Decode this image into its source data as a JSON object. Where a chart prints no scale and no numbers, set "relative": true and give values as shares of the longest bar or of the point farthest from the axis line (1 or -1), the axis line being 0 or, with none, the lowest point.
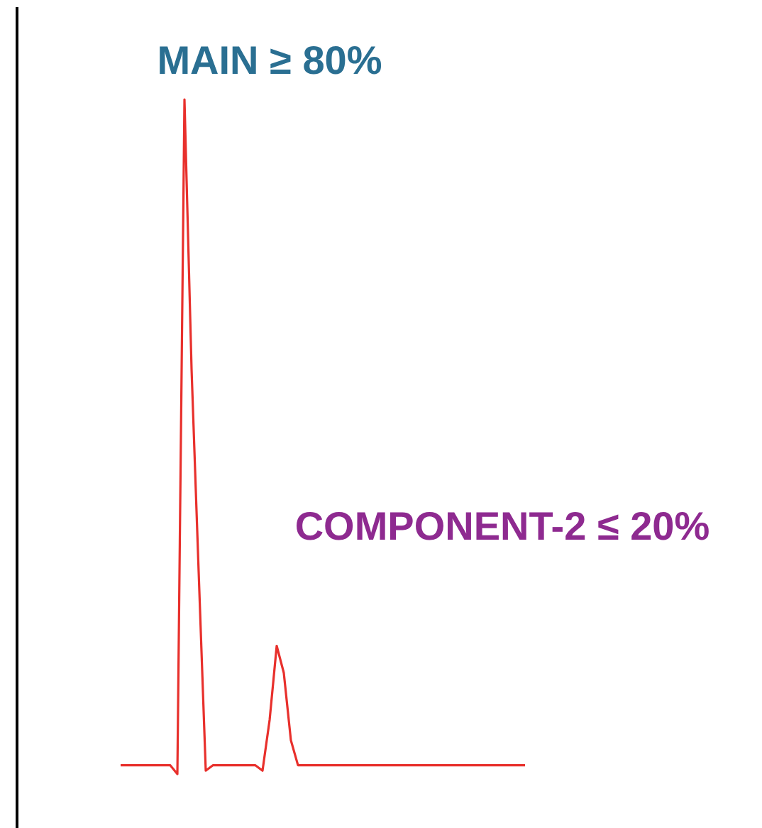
{
  "chart_data": {
    "type": "line",
    "relative": true,
    "marker": "none",
    "line_style": "solid",
    "categories": [
      null,
      null,
      null,
      null,
      null,
      null,
      null,
      null,
      null,
      null,
      null,
      null,
      null,
      null,
      null,
      null,
      null,
      null,
      null,
      null,
      null,
      null,
      null,
      null,
      null,
      null,
      null,
      null,
      null,
      null,
      null,
      null,
      null,
      null,
      null,
      null,
      null,
      null,
      null,
      null,
      null,
      null,
      null,
      null,
      null,
      null,
      null,
      null,
      null,
      null,
      null,
      null,
      null,
      null,
      null,
      null,
      null,
      null
    ],
    "series": [
      {
        "color": "#e8302c",
        "values": [
          0.013,
          0.013,
          0.013,
          0.013,
          0.013,
          0.013,
          0.013,
          0.013,
          0,
          1,
          0.6,
          0.3,
          0.005,
          0.013,
          0.013,
          0.013,
          0.013,
          0.013,
          0.013,
          0.013,
          0.005,
          0.08,
          0.19,
          0.15,
          0.05,
          0.013,
          0.013,
          0.013,
          0.013,
          0.013,
          0.013,
          0.013,
          0.013,
          0.013,
          0.013,
          0.013,
          0.013,
          0.013,
          0.013,
          0.013,
          0.013,
          0.013,
          0.013,
          0.013,
          0.013,
          0.013,
          0.013,
          0.013,
          0.013,
          0.013,
          0.013,
          0.013,
          0.013,
          0.013,
          0.013,
          0.013,
          0.013,
          0.013
        ]
      }
    ],
    "annotations": [
      "MAIN ≥ 80%",
      "COMPONENT-2 ≤ 20%"
    ]
  }
}
